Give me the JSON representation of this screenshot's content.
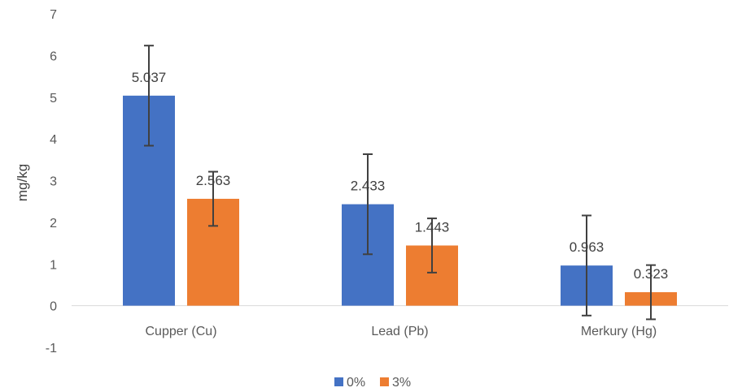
{
  "chart_data": {
    "type": "bar",
    "categories": [
      "Cupper (Cu)",
      "Lead (Pb)",
      "Merkury (Hg)"
    ],
    "series": [
      {
        "name": "0%",
        "color": "#4472c4",
        "values": [
          5.037,
          2.433,
          0.963
        ],
        "labels": [
          "5.037",
          "2.433",
          "0.963"
        ],
        "error": [
          1.2,
          1.2,
          1.2
        ]
      },
      {
        "name": "3%",
        "color": "#ed7d31",
        "values": [
          2.563,
          1.443,
          0.323
        ],
        "labels": [
          "2.563",
          "1.443",
          "0.323"
        ],
        "error": [
          0.65,
          0.65,
          0.65
        ]
      }
    ],
    "ylabel": "mg/kg",
    "ylim": [
      -1,
      7
    ],
    "yticks": [
      -1,
      0,
      1,
      2,
      3,
      4,
      5,
      6,
      7
    ],
    "ytick_labels": [
      "-1",
      "0",
      "1",
      "2",
      "3",
      "4",
      "5",
      "6",
      "7"
    ],
    "grid": false,
    "legend_position": "bottom",
    "axis_color": "#d9d9d9",
    "errorbar_color": "#404040"
  }
}
